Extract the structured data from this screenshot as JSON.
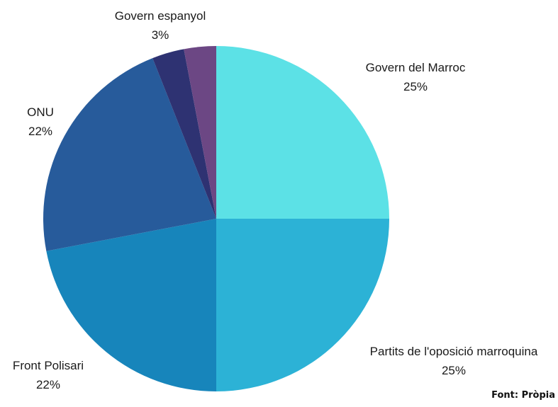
{
  "chart_data": {
    "type": "pie",
    "categories": [
      "Govern del Marroc",
      "Partits de l'oposició marroquina",
      "Front Polisari",
      "ONU",
      "Govern espanyol",
      ""
    ],
    "values": [
      25,
      25,
      22,
      22,
      3,
      3
    ],
    "value_labels": [
      "25%",
      "25%",
      "22%",
      "22%",
      "3%",
      ""
    ],
    "colors": [
      "#5CE1E6",
      "#2CB2D6",
      "#1785BB",
      "#275B9B",
      "#2E3272",
      "#6C4784"
    ],
    "title": "",
    "legend": "none"
  },
  "source_note": "Font: Pròpia"
}
